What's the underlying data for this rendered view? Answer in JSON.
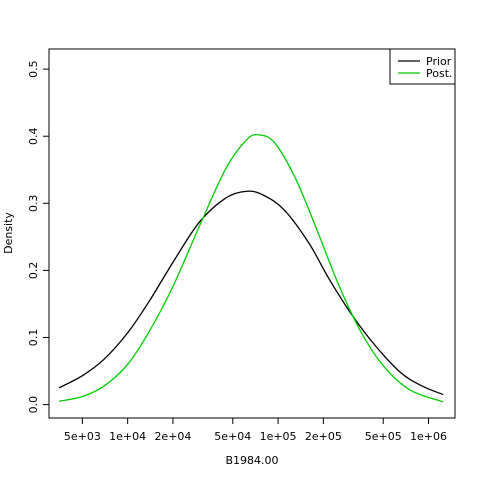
{
  "chart_data": {
    "type": "line",
    "title": "",
    "xlabel": "B1984.00",
    "ylabel": "Density",
    "x_scale": "log",
    "xlim": [
      3000,
      1500000
    ],
    "ylim": [
      -0.02,
      0.53
    ],
    "x_ticks": [
      {
        "value": 5000,
        "label": "5e+03"
      },
      {
        "value": 10000,
        "label": "1e+04"
      },
      {
        "value": 20000,
        "label": "2e+04"
      },
      {
        "value": 50000,
        "label": "5e+04"
      },
      {
        "value": 100000,
        "label": "1e+05"
      },
      {
        "value": 200000,
        "label": "2e+05"
      },
      {
        "value": 500000,
        "label": "5e+05"
      },
      {
        "value": 1000000,
        "label": "1e+06"
      }
    ],
    "y_ticks": [
      {
        "value": 0.0,
        "label": "0.0"
      },
      {
        "value": 0.1,
        "label": "0.1"
      },
      {
        "value": 0.2,
        "label": "0.2"
      },
      {
        "value": 0.3,
        "label": "0.3"
      },
      {
        "value": 0.4,
        "label": "0.4"
      },
      {
        "value": 0.5,
        "label": "0.5"
      }
    ],
    "grid": false,
    "legend_position": "top-right",
    "series": [
      {
        "name": "Prior",
        "color": "#000000",
        "x": [
          3500,
          5000,
          7000,
          10000,
          14000,
          20000,
          30000,
          45000,
          62000,
          80000,
          110000,
          160000,
          220000,
          320000,
          450000,
          650000,
          900000,
          1250000
        ],
        "y": [
          0.025,
          0.043,
          0.068,
          0.107,
          0.155,
          0.212,
          0.272,
          0.308,
          0.318,
          0.312,
          0.29,
          0.241,
          0.186,
          0.129,
          0.086,
          0.048,
          0.028,
          0.015
        ]
      },
      {
        "name": "Post.",
        "color": "#00cd00",
        "x": [
          3500,
          5000,
          7000,
          10000,
          14000,
          20000,
          30000,
          45000,
          62000,
          75000,
          95000,
          130000,
          180000,
          250000,
          350000,
          500000,
          750000,
          1250000
        ],
        "y": [
          0.005,
          0.012,
          0.028,
          0.06,
          0.11,
          0.176,
          0.266,
          0.352,
          0.395,
          0.402,
          0.39,
          0.338,
          0.262,
          0.181,
          0.111,
          0.058,
          0.022,
          0.004
        ]
      }
    ]
  }
}
